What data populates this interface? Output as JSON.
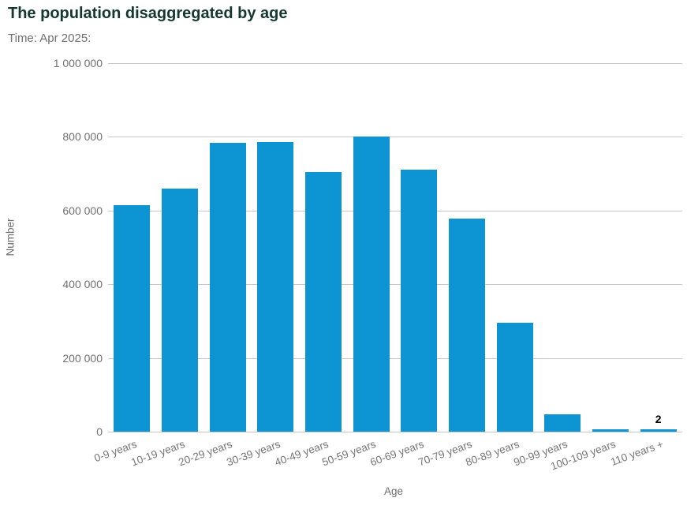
{
  "header": {
    "title": "The population disaggregated by age",
    "subtitle": "Time: Apr 2025:"
  },
  "chart_data": {
    "type": "bar",
    "title": "The population disaggregated by age",
    "subtitle": "Time: Apr 2025:",
    "xlabel": "Age",
    "ylabel": "Number",
    "ylim": [
      0,
      1000000
    ],
    "ytick_step": 200000,
    "ytick_labels": [
      "0",
      "200 000",
      "400 000",
      "600 000",
      "800 000",
      "1 000 000"
    ],
    "grid": true,
    "legend": "none",
    "bar_color": "#0d95d3",
    "categories": [
      "0-9 years",
      "10-19 years",
      "20-29 years",
      "30-39 years",
      "40-49 years",
      "50-59 years",
      "60-69 years",
      "70-79 years",
      "80-89 years",
      "90-99 years",
      "100-109 years",
      "110 years +"
    ],
    "values": [
      615000,
      660000,
      783000,
      786000,
      704000,
      800000,
      710000,
      578000,
      295000,
      48000,
      2000,
      2
    ],
    "point_labels": [
      "",
      "",
      "",
      "",
      "",
      "",
      "",
      "",
      "",
      "",
      "",
      "2"
    ]
  }
}
